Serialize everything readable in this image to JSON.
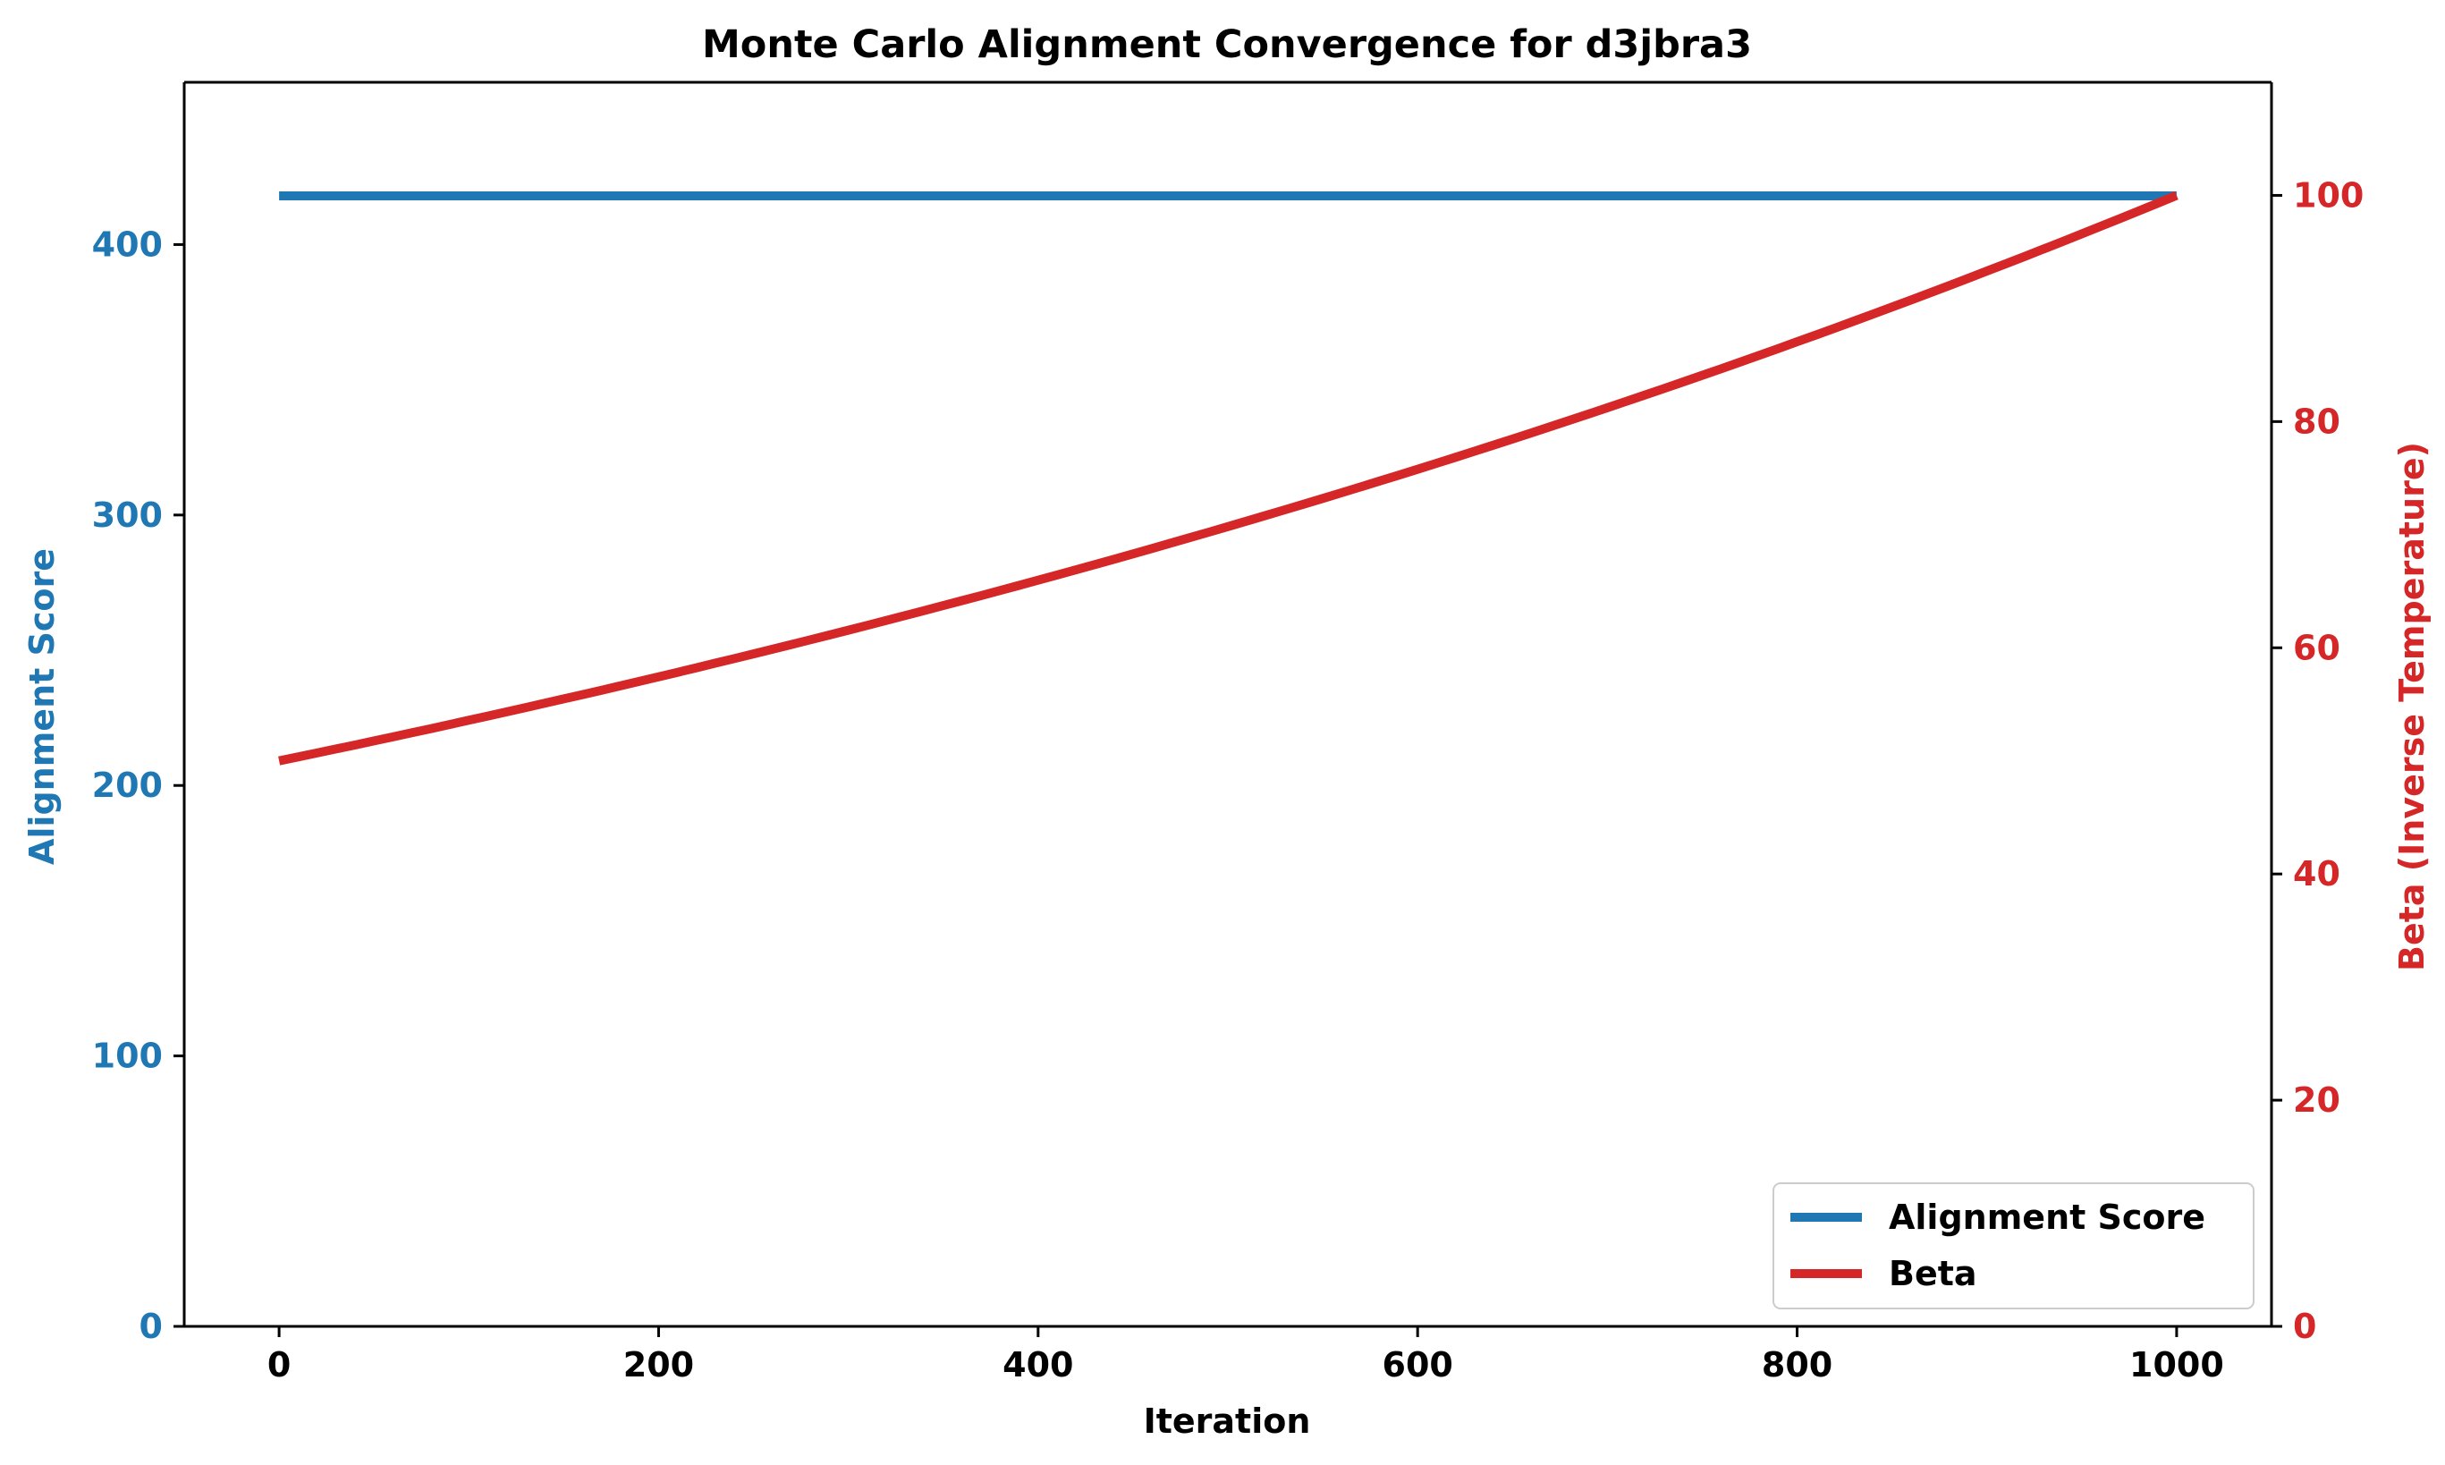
{
  "chart_data": {
    "type": "line",
    "title": "Monte Carlo Alignment Convergence for d3jbra3",
    "xlabel": "Iteration",
    "ylabel_left": "Alignment Score",
    "ylabel_right": "Beta (Inverse Temperature)",
    "xlim": [
      -50,
      1050
    ],
    "ylim_left": [
      0,
      460
    ],
    "ylim_right": [
      0,
      110
    ],
    "x_ticks": [
      0,
      200,
      400,
      600,
      800,
      1000
    ],
    "y_left_ticks": [
      0,
      100,
      200,
      300,
      400
    ],
    "y_right_ticks": [
      0,
      20,
      40,
      60,
      80,
      100
    ],
    "grid": false,
    "legend_position": "bottom-right",
    "colors": {
      "left_axis": "#1f77b4",
      "right_axis": "#d62728"
    },
    "series": [
      {
        "name": "Alignment Score",
        "axis": "left",
        "color": "#1f77b4",
        "x": [
          0,
          1000
        ],
        "values": [
          418,
          418
        ]
      },
      {
        "name": "Beta",
        "axis": "right",
        "color": "#d62728",
        "x": [
          0,
          100,
          200,
          300,
          400,
          500,
          600,
          700,
          800,
          900,
          1000
        ],
        "values": [
          50,
          53.6,
          57.4,
          61.6,
          66.0,
          70.7,
          75.8,
          81.2,
          87.1,
          93.3,
          100
        ]
      }
    ]
  }
}
